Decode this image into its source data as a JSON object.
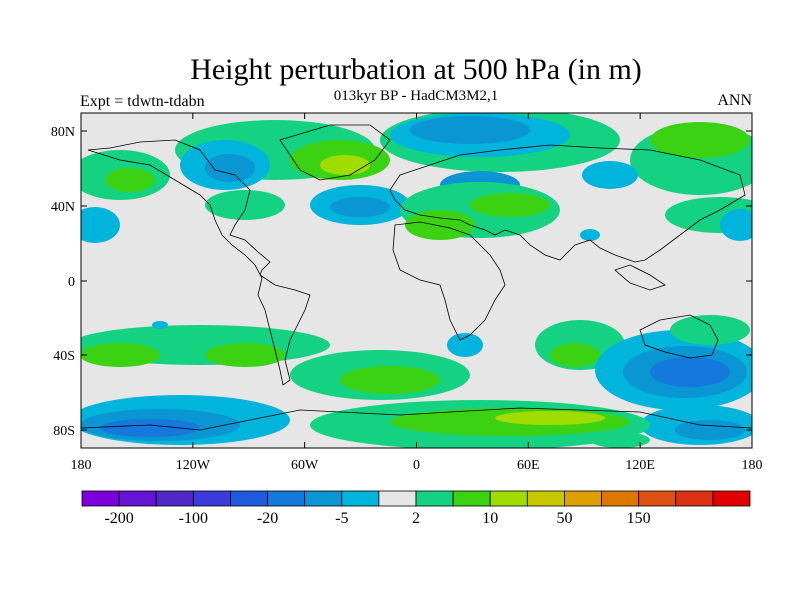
{
  "title": "Height perturbation at 500 hPa (in m)",
  "subtitle": "013kyr BP - HadCM3M2,1",
  "left_label": "Expt = tdwtn-tdabn",
  "right_label": "ANN",
  "y_ticks": [
    "80N",
    "40N",
    "0",
    "40S",
    "80S"
  ],
  "x_ticks": [
    "180",
    "120W",
    "60W",
    "0",
    "60E",
    "120E",
    "180"
  ],
  "colorbar": {
    "colors": [
      "#7a00dc",
      "#6414d2",
      "#5028c8",
      "#3c3cdc",
      "#1e5adc",
      "#1478dc",
      "#0a96d2",
      "#00b4dc",
      "#e6e6e6",
      "#14d282",
      "#3cd214",
      "#a0dc00",
      "#c8c800",
      "#dca000",
      "#dc7800",
      "#dc5014",
      "#dc3214",
      "#e10000"
    ],
    "labels": [
      "-200",
      "-100",
      "-20",
      "-5",
      "2",
      "10",
      "50",
      "150"
    ]
  },
  "colors": {
    "background": "#e6e6e6",
    "coastline": "#000000"
  }
}
